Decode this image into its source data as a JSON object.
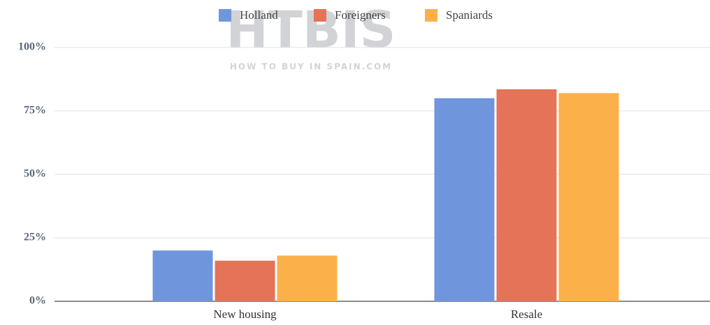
{
  "chart_data": {
    "type": "bar",
    "watermark": {
      "logo": "HTBIS",
      "tagline": "HOW TO BUY IN SPAIN.COM"
    },
    "categories": [
      "New housing",
      "Resale"
    ],
    "series": [
      {
        "name": "Holland",
        "color": "#6f96dc",
        "values": [
          20,
          80
        ]
      },
      {
        "name": "Foreigners",
        "color": "#e57358",
        "values": [
          16,
          83.5
        ]
      },
      {
        "name": "Spaniards",
        "color": "#fbb04a",
        "values": [
          18,
          82
        ]
      }
    ],
    "ylim": [
      0,
      100
    ],
    "yticks": [
      {
        "value": 0,
        "label": "0%"
      },
      {
        "value": 25,
        "label": "25%"
      },
      {
        "value": 50,
        "label": "50%"
      },
      {
        "value": 75,
        "label": "75%"
      },
      {
        "value": 100,
        "label": "100%"
      }
    ],
    "grid": true,
    "legend": "top"
  }
}
